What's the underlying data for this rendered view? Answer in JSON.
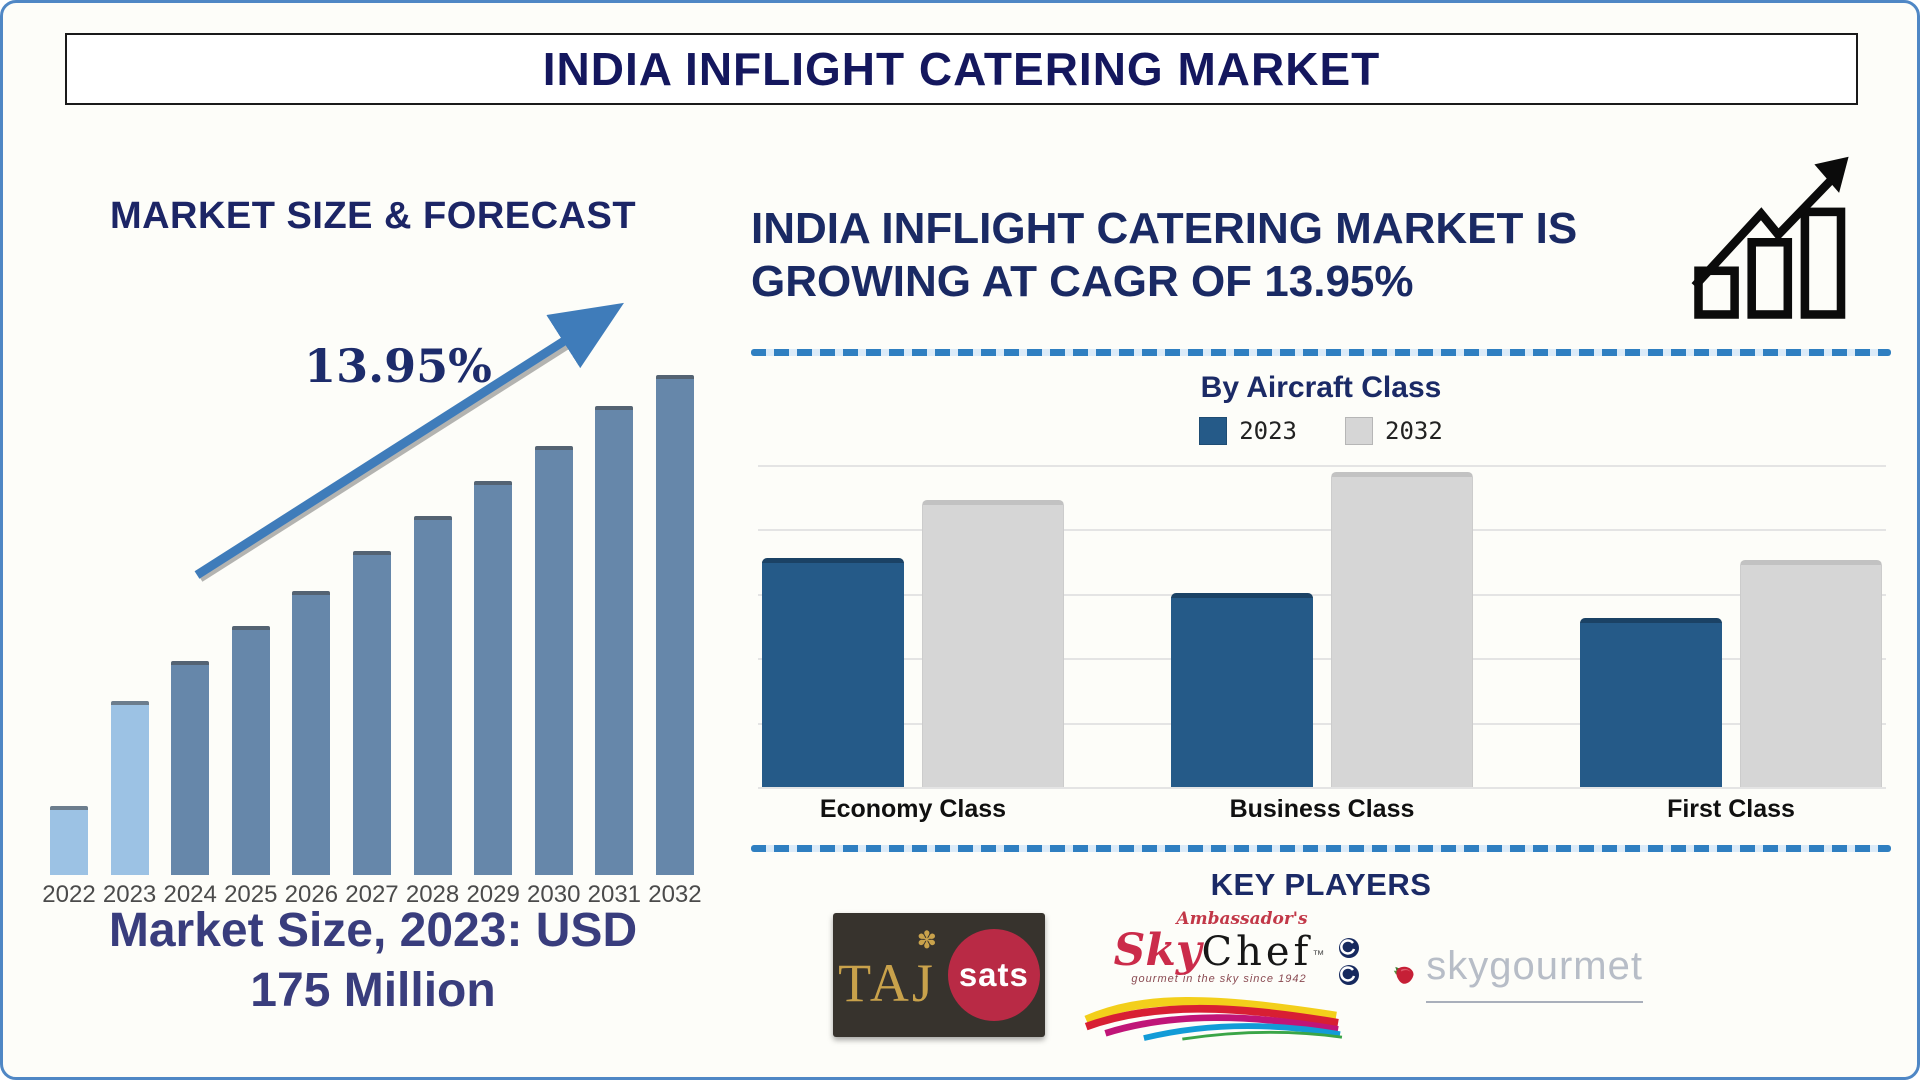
{
  "page": {
    "title": "INDIA INFLIGHT CATERING MARKET",
    "background": "#fdfdf9",
    "border_color": "#4f87c5",
    "accent_navy": "#1a2060"
  },
  "left_panel": {
    "heading": "MARKET SIZE & FORECAST",
    "cagr_label": "13.95%",
    "trend_arrow_icon": "upward-trend-arrow",
    "market_size_line1": "Market Size, 2023: USD",
    "market_size_line2": "175 Million"
  },
  "right_panel": {
    "heading_line1": "INDIA INFLIGHT CATERING MARKET IS",
    "heading_line2": "GROWING AT CAGR OF 13.95%",
    "growth_icon": "growth-bar-chart-icon",
    "section_title": "By Aircraft Class"
  },
  "key_players": {
    "heading": "KEY PLAYERS",
    "players": [
      {
        "name": "TajSATS",
        "text_primary": "TAJ",
        "text_secondary": "sats",
        "emblem_icon": "taj-floral-emblem",
        "colors": {
          "background": "#37332d",
          "gold": "#c9a24b",
          "red_circle": "#b92a45"
        }
      },
      {
        "name": "Ambassador's SkyChef",
        "text_script": "Ambassador's",
        "text_sky": "Sky",
        "text_chef": "Chef",
        "trademark": "™",
        "tagline": "gourmet in the sky since 1942",
        "swoosh_icon": "color-wave-swoosh",
        "badge_icon": "circular-certification-badges"
      },
      {
        "name": "skygourmet",
        "text": "skygourmet",
        "berry_icon": "strawberry-icon",
        "text_color": "#b7bdc7"
      }
    ]
  },
  "chart_data": [
    {
      "type": "bar",
      "title": "MARKET SIZE & FORECAST",
      "categories": [
        "2022",
        "2023",
        "2024",
        "2025",
        "2026",
        "2027",
        "2028",
        "2029",
        "2030",
        "2031",
        "2032"
      ],
      "values": [
        13,
        34,
        42,
        49,
        56,
        64,
        71,
        78,
        85,
        93,
        100
      ],
      "value_scale": "relative bar height, % of 2032 bar (no y-axis shown)",
      "annotation": "13.95%",
      "known_point": "Market Size 2023 = USD 175 Million",
      "bar_color": "#6687aa",
      "highlight_color": "#9cc2e4",
      "highlighted_categories": [
        "2022",
        "2023"
      ],
      "grid": false,
      "axes_shown": false,
      "xlabel": "",
      "ylabel": ""
    },
    {
      "type": "bar",
      "title": "By Aircraft Class",
      "categories": [
        "Economy Class",
        "Business Class",
        "First Class"
      ],
      "series": [
        {
          "name": "2023",
          "color": "#255a88",
          "values": [
            71,
            60,
            52
          ]
        },
        {
          "name": "2032",
          "color": "#d6d6d6",
          "values": [
            91,
            100,
            72
          ]
        }
      ],
      "value_scale": "relative bar height, % of tallest bar (no y-axis shown)",
      "ylim": [
        0,
        100
      ],
      "grid": true,
      "legend_position": "top",
      "xlabel": "",
      "ylabel": ""
    }
  ]
}
